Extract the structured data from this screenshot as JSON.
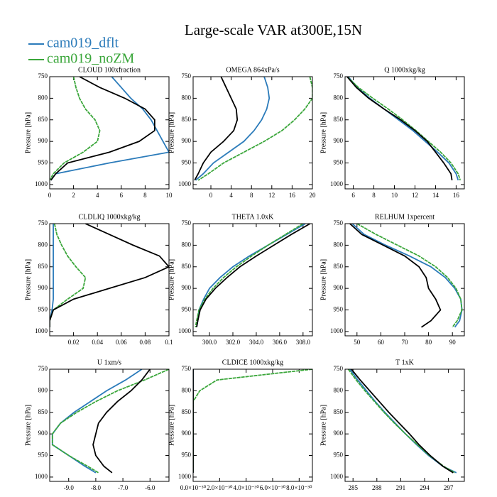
{
  "title": "Large-scale VAR at300E,15N",
  "chart_data": [
    {
      "type": "line",
      "title": "CLOUD  100xfraction",
      "ylabel": "Pressure [hPa]",
      "y": [
        750,
        775,
        800,
        825,
        850,
        875,
        900,
        925,
        950,
        975,
        990
      ],
      "xlim": [
        0,
        10
      ],
      "xticks": [
        0,
        2,
        4,
        6,
        8,
        10
      ],
      "ylim": [
        1010,
        750
      ],
      "yticks": [
        750,
        800,
        850,
        900,
        950,
        1000
      ],
      "series": [
        {
          "name": "cam019_dflt",
          "color": "#2b7bba",
          "values": [
            5.2,
            6.0,
            6.8,
            7.8,
            8.5,
            9.0,
            9.5,
            10.0,
            5.0,
            0.5,
            0.1
          ]
        },
        {
          "name": "cam019_noZM",
          "color": "#3aa63a",
          "values": [
            2.0,
            2.2,
            2.5,
            3.0,
            3.8,
            4.2,
            4.0,
            2.8,
            1.2,
            0.3,
            0
          ]
        },
        {
          "color": "#000000",
          "values": [
            2.5,
            4.2,
            6.3,
            8.0,
            8.8,
            8.8,
            7.5,
            5.0,
            1.5,
            0.5,
            0.1
          ]
        }
      ]
    },
    {
      "type": "line",
      "title": "OMEGA  864xPa/s",
      "ylabel": "Pressure [hPa]",
      "y": [
        750,
        775,
        800,
        825,
        850,
        875,
        900,
        925,
        950,
        975,
        990
      ],
      "xlim": [
        -3.5,
        20
      ],
      "xticks": [
        0,
        4,
        8,
        12,
        16,
        20
      ],
      "ylim": [
        1010,
        750
      ],
      "yticks": [
        750,
        800,
        850,
        900,
        950,
        1000
      ],
      "series": [
        {
          "name": "cam019_dflt",
          "color": "#2b7bba",
          "values": [
            10.5,
            11.2,
            11.5,
            11.0,
            10.0,
            8.5,
            6.5,
            3.5,
            0.5,
            -1.5,
            -3
          ]
        },
        {
          "name": "cam019_noZM",
          "color": "#3aa63a",
          "values": [
            19.5,
            20,
            20,
            18.5,
            16.5,
            14,
            10.5,
            6.5,
            2.5,
            -0.5,
            -2.5
          ]
        },
        {
          "color": "#000000",
          "values": [
            2,
            3,
            4,
            5,
            5.2,
            4.5,
            2.5,
            0,
            -1.5,
            -2.5,
            -3.2
          ]
        }
      ]
    },
    {
      "type": "line",
      "title": "Q  1000xkg/kg",
      "ylabel": "Pressure [hPa]",
      "y": [
        750,
        775,
        800,
        825,
        850,
        875,
        900,
        925,
        950,
        975,
        990
      ],
      "xlim": [
        5.2,
        16.8
      ],
      "xticks": [
        6,
        8,
        10,
        12,
        14,
        16
      ],
      "ylim": [
        1010,
        750
      ],
      "yticks": [
        750,
        800,
        850,
        900,
        950,
        1000
      ],
      "series": [
        {
          "name": "cam019_dflt",
          "color": "#2b7bba",
          "values": [
            5.5,
            6.4,
            7.6,
            9.0,
            10.4,
            11.8,
            13.0,
            14.2,
            15.3,
            16.0,
            16.2
          ]
        },
        {
          "name": "cam019_noZM",
          "color": "#3aa63a",
          "values": [
            5.4,
            6.5,
            7.9,
            9.4,
            10.8,
            12.1,
            13.3,
            14.5,
            15.5,
            16.2,
            16.4
          ]
        },
        {
          "color": "#000000",
          "values": [
            5.4,
            6.3,
            7.5,
            9.0,
            10.6,
            12.0,
            13.2,
            14.0,
            14.8,
            15.5,
            15.6
          ]
        }
      ]
    },
    {
      "type": "line",
      "title": "CLDLIQ  1000xkg/kg",
      "ylabel": "Pressure [hPa]",
      "y": [
        750,
        775,
        800,
        825,
        850,
        875,
        900,
        925,
        950,
        975,
        990
      ],
      "xlim": [
        0,
        0.1
      ],
      "xticks": [
        0.02,
        0.04,
        0.06,
        0.08,
        0.1
      ],
      "ylim": [
        1010,
        750
      ],
      "yticks": [
        750,
        800,
        850,
        900,
        950,
        1000
      ],
      "series": [
        {
          "name": "cam019_dflt",
          "color": "#2b7bba",
          "values": [
            0.003,
            0.003,
            0.003,
            0.003,
            0.003,
            0.003,
            0.003,
            0.003,
            0.002,
            0,
            0
          ]
        },
        {
          "name": "cam019_noZM",
          "color": "#3aa63a",
          "values": [
            0.004,
            0.006,
            0.01,
            0.015,
            0.022,
            0.03,
            0.028,
            0.015,
            0.003,
            0,
            0
          ]
        },
        {
          "color": "#000000",
          "values": [
            0.03,
            0.05,
            0.07,
            0.092,
            0.1,
            0.08,
            0.05,
            0.02,
            0.003,
            0,
            0
          ]
        }
      ]
    },
    {
      "type": "line",
      "title": "THETA  1.0xK",
      "ylabel": "Pressure [hPa]",
      "y": [
        750,
        775,
        800,
        825,
        850,
        875,
        900,
        925,
        950,
        975,
        990
      ],
      "xlim": [
        298.6,
        308.8
      ],
      "xticks": [
        {
          "value": 300,
          "label": "300.0"
        },
        {
          "value": 302,
          "label": "302.0"
        },
        {
          "value": 304,
          "label": "304.0"
        },
        {
          "value": 306,
          "label": "306.0"
        },
        {
          "value": 308,
          "label": "308.0"
        }
      ],
      "ylim": [
        1010,
        750
      ],
      "yticks": [
        750,
        800,
        850,
        900,
        950,
        1000
      ],
      "series": [
        {
          "name": "cam019_dflt",
          "color": "#2b7bba",
          "values": [
            308.2,
            306.6,
            305.0,
            303.4,
            302.0,
            300.9,
            300.0,
            299.5,
            299.1,
            299.0,
            298.9
          ]
        },
        {
          "name": "cam019_noZM",
          "color": "#3aa63a",
          "values": [
            308.0,
            306.5,
            305.0,
            303.6,
            302.3,
            301.2,
            300.3,
            299.6,
            299.1,
            298.9,
            298.8
          ]
        },
        {
          "color": "#000000",
          "values": [
            308.6,
            307.0,
            305.5,
            304.0,
            302.6,
            301.5,
            300.5,
            299.7,
            299.2,
            299.0,
            298.9
          ]
        }
      ]
    },
    {
      "type": "line",
      "title": "RELHUM  1xpercent",
      "ylabel": "Pressure [hPa]",
      "y": [
        750,
        775,
        800,
        825,
        850,
        875,
        900,
        925,
        950,
        975,
        990
      ],
      "xlim": [
        45,
        95
      ],
      "xticks": [
        50,
        60,
        70,
        80,
        90
      ],
      "ylim": [
        1010,
        750
      ],
      "yticks": [
        750,
        800,
        850,
        900,
        950,
        1000
      ],
      "series": [
        {
          "name": "cam019_dflt",
          "color": "#2b7bba",
          "values": [
            48,
            53,
            62,
            72,
            81,
            87,
            91,
            93.5,
            94,
            93,
            91
          ]
        },
        {
          "name": "cam019_noZM",
          "color": "#3aa63a",
          "values": [
            50,
            58,
            67,
            76,
            83,
            88,
            91.5,
            93.5,
            94,
            92,
            90
          ]
        },
        {
          "color": "#000000",
          "values": [
            47,
            52,
            61,
            70,
            76,
            79,
            80,
            83,
            85,
            81,
            77
          ]
        }
      ]
    },
    {
      "type": "line",
      "title": "U  1xm/s",
      "ylabel": "Pressure [hPa]",
      "y": [
        750,
        775,
        800,
        825,
        850,
        875,
        900,
        925,
        950,
        975,
        990
      ],
      "xlim": [
        -9.7,
        -5.3
      ],
      "xticks": [
        {
          "value": -9,
          "label": "-9.0"
        },
        {
          "value": -8,
          "label": "-8.0"
        },
        {
          "value": -7,
          "label": "-7.0"
        },
        {
          "value": -6,
          "label": "-6.0"
        }
      ],
      "ylim": [
        1010,
        750
      ],
      "yticks": [
        750,
        800,
        850,
        900,
        950,
        1000
      ],
      "series": [
        {
          "name": "cam019_dflt",
          "color": "#2b7bba",
          "values": [
            -6.3,
            -6.9,
            -7.6,
            -8.2,
            -8.8,
            -9.3,
            -9.6,
            -9.6,
            -9.0,
            -8.4,
            -8.0
          ]
        },
        {
          "name": "cam019_noZM",
          "color": "#3aa63a",
          "values": [
            -5.3,
            -6.2,
            -7.2,
            -8.0,
            -8.7,
            -9.3,
            -9.6,
            -9.6,
            -9.0,
            -8.3,
            -7.9
          ]
        },
        {
          "color": "#000000",
          "values": [
            -6.0,
            -6.3,
            -6.7,
            -7.2,
            -7.6,
            -7.9,
            -8.0,
            -8.1,
            -8.0,
            -7.7,
            -7.4
          ]
        }
      ]
    },
    {
      "type": "line",
      "title": "CLDICE  1000xkg/kg",
      "ylabel": "Pressure [hPa]",
      "y": [
        750,
        775,
        800,
        825,
        850,
        875,
        900,
        925,
        950,
        975,
        990
      ],
      "xlim": [
        0,
        9e-30
      ],
      "xticks": [
        {
          "value": 0,
          "label": "0.0×10⁻³⁰"
        },
        {
          "value": 2e-30,
          "label": "2.0×10⁻³⁰"
        },
        {
          "value": 4e-30,
          "label": "4.0×10⁻³⁰"
        },
        {
          "value": 6e-30,
          "label": "6.0×10⁻³⁰"
        },
        {
          "value": 8e-30,
          "label": "8.0×10⁻³⁰"
        }
      ],
      "ylim": [
        1010,
        750
      ],
      "yticks": [
        750,
        800,
        850,
        900,
        950,
        1000
      ],
      "series": [
        {
          "name": "cam019_dflt",
          "color": "#2b7bba",
          "values": [
            0,
            0,
            0,
            0,
            0,
            0,
            0,
            0,
            0,
            0,
            0
          ]
        },
        {
          "name": "cam019_noZM",
          "color": "#3aa63a",
          "values": [
            9e-30,
            1.8e-30,
            5e-31,
            0,
            0,
            0,
            0,
            0,
            0,
            0,
            0
          ]
        },
        {
          "color": "#000000",
          "values": [
            0,
            0,
            0,
            0,
            0,
            0,
            0,
            0,
            0,
            0,
            0
          ]
        }
      ]
    },
    {
      "type": "line",
      "title": "T  1xK",
      "ylabel": "Pressure [hPa]",
      "y": [
        750,
        775,
        800,
        825,
        850,
        875,
        900,
        925,
        950,
        975,
        990
      ],
      "xlim": [
        284,
        299
      ],
      "xticks": [
        285,
        288,
        291,
        294,
        297
      ],
      "ylim": [
        1010,
        750
      ],
      "yticks": [
        750,
        800,
        850,
        900,
        950,
        1000
      ],
      "series": [
        {
          "name": "cam019_dflt",
          "color": "#2b7bba",
          "values": [
            284.6,
            285.6,
            286.7,
            287.8,
            289.0,
            290.3,
            291.6,
            293.0,
            294.5,
            296.3,
            298.0
          ]
        },
        {
          "name": "cam019_noZM",
          "color": "#3aa63a",
          "values": [
            284.4,
            285.4,
            286.5,
            287.7,
            288.9,
            290.2,
            291.6,
            293.1,
            294.6,
            296.4,
            297.8
          ]
        },
        {
          "color": "#000000",
          "values": [
            284.8,
            285.9,
            287.1,
            288.3,
            289.5,
            290.8,
            292.1,
            293.3,
            294.7,
            296.3,
            297.6
          ]
        }
      ]
    }
  ]
}
